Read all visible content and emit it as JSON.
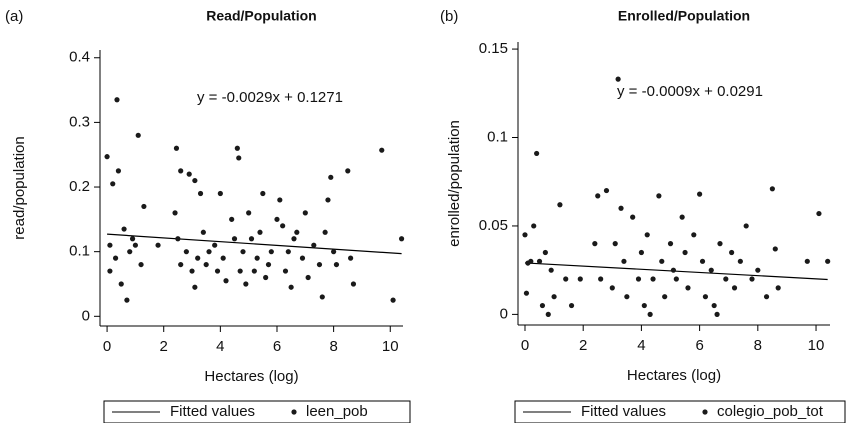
{
  "chart_data": [
    {
      "type": "scatter",
      "label": "(a)",
      "title": "Read/Population",
      "xlabel": "Hectares (log)",
      "ylabel": "read/population",
      "annotation": "y = -0.0029x + 0.1271",
      "xlim": [
        -0.25,
        10.45
      ],
      "xticks": [
        0,
        2,
        4,
        6,
        8,
        10
      ],
      "ylim": [
        -0.015,
        0.412
      ],
      "yticks": [
        0,
        0.1,
        0.2,
        0.3,
        0.4
      ],
      "series": [
        {
          "name": "Fitted values",
          "type": "line",
          "color": "#000000",
          "x": [
            0,
            10.4
          ],
          "values": [
            0.1271,
            0.09694
          ]
        },
        {
          "name": "leen_pob",
          "type": "scatter",
          "color": "#1a1a1a",
          "x": [
            0,
            0.1,
            0.1,
            0.2,
            0.3,
            0.35,
            0.4,
            0.5,
            0.6,
            0.7,
            0.8,
            0.9,
            1.0,
            1.1,
            1.2,
            1.3,
            1.8,
            2.4,
            2.45,
            2.5,
            2.6,
            2.6,
            2.8,
            2.9,
            3.0,
            3.1,
            3.1,
            3.2,
            3.3,
            3.4,
            3.5,
            3.6,
            3.8,
            3.9,
            4.0,
            4.1,
            4.2,
            4.4,
            4.5,
            4.6,
            4.65,
            4.7,
            4.8,
            4.9,
            5.0,
            5.1,
            5.2,
            5.3,
            5.4,
            5.5,
            5.6,
            5.7,
            5.8,
            6.0,
            6.1,
            6.2,
            6.3,
            6.4,
            6.5,
            6.6,
            6.7,
            6.9,
            7.0,
            7.1,
            7.3,
            7.5,
            7.6,
            7.7,
            7.8,
            7.9,
            8.0,
            8.1,
            8.5,
            8.6,
            8.7,
            9.7,
            10.1,
            10.4
          ],
          "values": [
            0.247,
            0.07,
            0.11,
            0.205,
            0.09,
            0.335,
            0.225,
            0.05,
            0.135,
            0.025,
            0.1,
            0.12,
            0.11,
            0.28,
            0.08,
            0.17,
            0.11,
            0.16,
            0.26,
            0.12,
            0.225,
            0.08,
            0.1,
            0.22,
            0.07,
            0.21,
            0.045,
            0.09,
            0.19,
            0.13,
            0.08,
            0.1,
            0.11,
            0.07,
            0.19,
            0.09,
            0.055,
            0.15,
            0.12,
            0.26,
            0.245,
            0.07,
            0.1,
            0.05,
            0.16,
            0.12,
            0.07,
            0.09,
            0.13,
            0.19,
            0.06,
            0.08,
            0.1,
            0.15,
            0.18,
            0.14,
            0.07,
            0.1,
            0.045,
            0.12,
            0.13,
            0.09,
            0.16,
            0.06,
            0.11,
            0.08,
            0.03,
            0.13,
            0.18,
            0.215,
            0.1,
            0.08,
            0.225,
            0.09,
            0.05,
            0.257,
            0.025,
            0.12
          ]
        }
      ]
    },
    {
      "type": "scatter",
      "label": "(b)",
      "title": "Enrolled/Population",
      "xlabel": "Hectares (log)",
      "ylabel": "enrolled/population",
      "annotation": "y = -0.0009x + 0.0291",
      "xlim": [
        -0.24,
        10.48
      ],
      "xticks": [
        0,
        2,
        4,
        6,
        8,
        10
      ],
      "ylim": [
        -0.006,
        0.154
      ],
      "yticks": [
        0,
        0.05,
        0.1,
        0.15
      ],
      "series": [
        {
          "name": "Fitted values",
          "type": "line",
          "color": "#000000",
          "x": [
            0,
            10.4
          ],
          "values": [
            0.0291,
            0.01974
          ]
        },
        {
          "name": "colegio_pob_tot",
          "type": "scatter",
          "color": "#1a1a1a",
          "x": [
            0,
            0.05,
            0.1,
            0.2,
            0.3,
            0.4,
            0.5,
            0.6,
            0.7,
            0.8,
            0.9,
            1.0,
            1.2,
            1.4,
            1.6,
            1.9,
            2.4,
            2.5,
            2.6,
            2.8,
            3.0,
            3.1,
            3.2,
            3.3,
            3.4,
            3.5,
            3.7,
            3.9,
            4.0,
            4.1,
            4.2,
            4.3,
            4.4,
            4.6,
            4.7,
            4.8,
            5.0,
            5.1,
            5.2,
            5.4,
            5.5,
            5.6,
            5.8,
            6.0,
            6.1,
            6.2,
            6.4,
            6.5,
            6.6,
            6.7,
            6.9,
            7.1,
            7.2,
            7.4,
            7.6,
            7.8,
            8.0,
            8.3,
            8.5,
            8.6,
            8.7,
            9.7,
            10.1,
            10.4
          ],
          "values": [
            0.045,
            0.012,
            0.029,
            0.03,
            0.05,
            0.091,
            0.03,
            0.005,
            0.035,
            0.0,
            0.025,
            0.01,
            0.062,
            0.02,
            0.005,
            0.02,
            0.04,
            0.067,
            0.02,
            0.07,
            0.015,
            0.04,
            0.133,
            0.06,
            0.03,
            0.01,
            0.055,
            0.02,
            0.035,
            0.005,
            0.045,
            0.0,
            0.02,
            0.067,
            0.03,
            0.01,
            0.04,
            0.025,
            0.02,
            0.055,
            0.035,
            0.015,
            0.045,
            0.068,
            0.03,
            0.01,
            0.025,
            0.005,
            0.0,
            0.04,
            0.02,
            0.035,
            0.015,
            0.03,
            0.05,
            0.02,
            0.025,
            0.01,
            0.071,
            0.037,
            0.015,
            0.03,
            0.057,
            0.03
          ]
        }
      ]
    }
  ]
}
